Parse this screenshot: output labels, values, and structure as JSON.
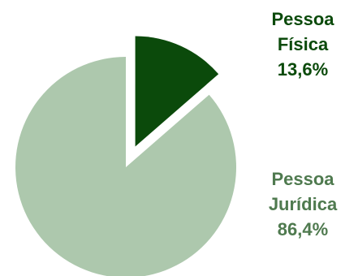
{
  "chart_data": {
    "type": "pie",
    "title": "",
    "slices": [
      {
        "label_line1": "Pessoa",
        "label_line2": "Física",
        "value": 13.6,
        "value_text": "13,6%",
        "color": "#0b4a0b",
        "exploded": true
      },
      {
        "label_line1": "Pessoa",
        "label_line2": "Jurídica",
        "value": 86.4,
        "value_text": "86,4%",
        "color": "#adc8ad",
        "exploded": false
      }
    ],
    "label_colors": [
      "#0b4a0b",
      "#4f7a4f"
    ]
  }
}
